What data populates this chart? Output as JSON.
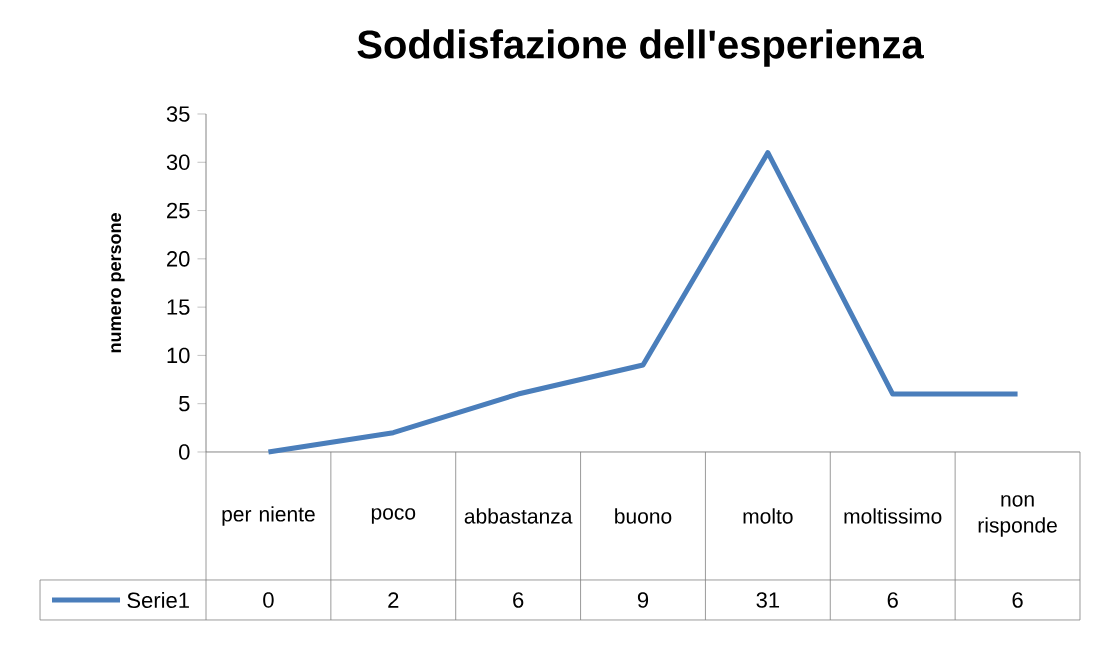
{
  "chart_data": {
    "type": "line",
    "title": "Soddisfazione dell'esperienza",
    "ylabel": "numero persone",
    "categories": [
      "per niente",
      "poco",
      "abbastanza",
      "buono",
      "molto",
      "moltissimo",
      "non risponde"
    ],
    "series": [
      {
        "name": "Serie1",
        "color": "#4a7ebb",
        "values": [
          0,
          2,
          6,
          9,
          31,
          6,
          6
        ]
      }
    ],
    "ylim": [
      0,
      35
    ],
    "yticks": [
      0,
      5,
      10,
      15,
      20,
      25,
      30,
      35
    ],
    "data_labels": true,
    "legend": "bottom left",
    "grid": false,
    "marker": "none",
    "line_style": "solid"
  }
}
